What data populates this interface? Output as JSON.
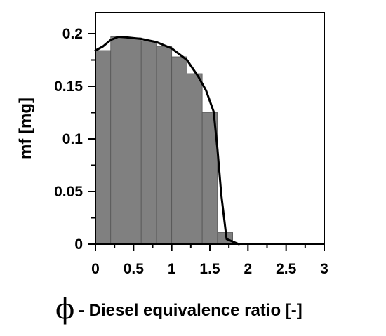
{
  "chart_data": {
    "type": "bar",
    "title": "",
    "xlabel_symbol": "ϕ",
    "xlabel": "- Diesel equivalence ratio [-]",
    "ylabel": "mf [mg]",
    "xlim": [
      0,
      3
    ],
    "ylim": [
      0,
      0.22
    ],
    "xticks": [
      0,
      0.5,
      1,
      1.5,
      2,
      2.5,
      3
    ],
    "xtick_labels": [
      "0",
      "0.5",
      "1",
      "1.5",
      "2",
      "2.5",
      "3"
    ],
    "yticks": [
      0,
      0.05,
      0.1,
      0.15,
      0.2
    ],
    "ytick_labels": [
      "0",
      "0.05",
      "0.1",
      "0.15",
      "0.2"
    ],
    "bar_width": 0.2,
    "bar_color": "#808080",
    "bars": [
      {
        "x": 0.0,
        "value": 0.184
      },
      {
        "x": 0.2,
        "value": 0.197
      },
      {
        "x": 0.4,
        "value": 0.196
      },
      {
        "x": 0.6,
        "value": 0.193
      },
      {
        "x": 0.8,
        "value": 0.188
      },
      {
        "x": 1.0,
        "value": 0.178
      },
      {
        "x": 1.2,
        "value": 0.162
      },
      {
        "x": 1.4,
        "value": 0.125
      },
      {
        "x": 1.6,
        "value": 0.011
      }
    ],
    "curve": {
      "color": "#000000",
      "points": [
        [
          0.0,
          0.184
        ],
        [
          0.1,
          0.188
        ],
        [
          0.2,
          0.194
        ],
        [
          0.3,
          0.197
        ],
        [
          0.4,
          0.1965
        ],
        [
          0.6,
          0.195
        ],
        [
          0.8,
          0.192
        ],
        [
          1.0,
          0.186
        ],
        [
          1.2,
          0.175
        ],
        [
          1.35,
          0.159
        ],
        [
          1.45,
          0.146
        ],
        [
          1.55,
          0.126
        ],
        [
          1.6,
          0.09
        ],
        [
          1.65,
          0.047
        ],
        [
          1.72,
          0.0048
        ],
        [
          1.88,
          0.0
        ]
      ]
    },
    "grid": false,
    "legend": "none"
  }
}
